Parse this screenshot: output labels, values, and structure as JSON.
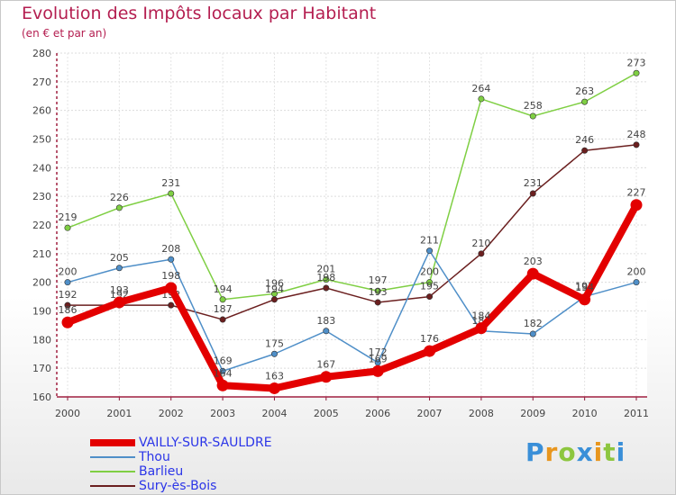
{
  "chart_data": {
    "type": "line",
    "title": "Evolution des Impôts locaux par Habitant",
    "subtitle": "(en € et par an)",
    "x": [
      "2000",
      "2001",
      "2002",
      "2003",
      "2004",
      "2005",
      "2006",
      "2007",
      "2008",
      "2009",
      "2010",
      "2011"
    ],
    "ylim": [
      160,
      280
    ],
    "yticks": [
      160,
      170,
      180,
      190,
      200,
      210,
      220,
      230,
      240,
      250,
      260,
      270,
      280
    ],
    "grid": true,
    "series": [
      {
        "name": "VAILLY-SUR-SAULDRE",
        "color": "#e30000",
        "values": [
          186,
          193,
          198,
          164,
          163,
          167,
          169,
          176,
          184,
          203,
          194,
          227
        ]
      },
      {
        "name": "Thou",
        "color": "#4f8fc8",
        "values": [
          200,
          205,
          208,
          169,
          175,
          183,
          172,
          211,
          183,
          182,
          195,
          200
        ]
      },
      {
        "name": "Barlieu",
        "color": "#7fcf43",
        "values": [
          219,
          226,
          231,
          194,
          196,
          201,
          197,
          200,
          264,
          258,
          263,
          273
        ]
      },
      {
        "name": "Sury-ès-Bois",
        "color": "#6b1f1f",
        "values": [
          192,
          192,
          192,
          187,
          194,
          198,
          193,
          195,
          210,
          231,
          246,
          248
        ]
      }
    ]
  },
  "brand": {
    "letters": [
      {
        "char": "P",
        "color": "#3a8fd8"
      },
      {
        "char": "r",
        "color": "#e8961e"
      },
      {
        "char": "o",
        "color": "#8dc63f"
      },
      {
        "char": "x",
        "color": "#3a8fd8"
      },
      {
        "char": "i",
        "color": "#e8961e"
      },
      {
        "char": "t",
        "color": "#8dc63f"
      },
      {
        "char": "i",
        "color": "#3a8fd8"
      }
    ]
  }
}
